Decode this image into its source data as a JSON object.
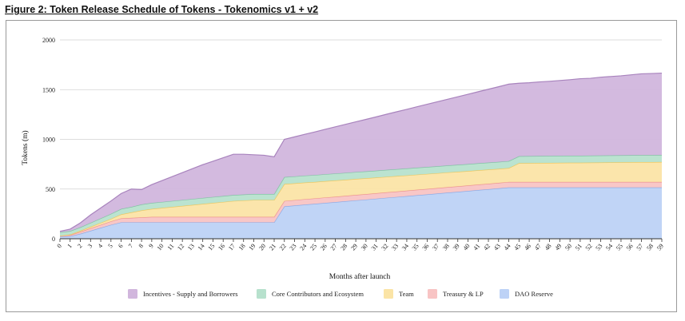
{
  "figure_title": "Figure 2: Token Release Schedule of Tokens - Tokenomics v1 + v2",
  "chart_data": {
    "type": "area",
    "stacked": true,
    "title": "",
    "xlabel": "Months after launch",
    "ylabel": "Tokens (m)",
    "xlim": [
      0,
      59
    ],
    "ylim": [
      0,
      2000
    ],
    "yticks": [
      "0",
      "500",
      "1000",
      "1500",
      "2000"
    ],
    "grid": true,
    "legend_position": "bottom",
    "x": [
      0,
      1,
      2,
      3,
      4,
      5,
      6,
      7,
      8,
      9,
      10,
      11,
      12,
      13,
      14,
      15,
      16,
      17,
      18,
      19,
      20,
      21,
      22,
      23,
      24,
      25,
      26,
      27,
      28,
      29,
      30,
      31,
      32,
      33,
      34,
      35,
      36,
      37,
      38,
      39,
      40,
      41,
      42,
      43,
      44,
      45,
      46,
      47,
      48,
      49,
      50,
      51,
      52,
      53,
      54,
      55,
      56,
      57,
      58,
      59
    ],
    "x_tick_labels": [
      "0",
      "1",
      "2",
      "3",
      "4",
      "5",
      "6",
      "7",
      "8",
      "9",
      "10",
      "11",
      "12",
      "13",
      "14",
      "15",
      "16",
      "17",
      "18",
      "19",
      "20",
      "21",
      "22",
      "23",
      "24",
      "25",
      "26",
      "27",
      "28",
      "29",
      "30",
      "31",
      "32",
      "33",
      "34",
      "35",
      "36",
      "37",
      "38",
      "39",
      "40",
      "41",
      "42",
      "43",
      "44",
      "45",
      "46",
      "47",
      "48",
      "49",
      "50",
      "51",
      "52",
      "53",
      "54",
      "55",
      "56",
      "57",
      "58",
      "59"
    ],
    "series": [
      {
        "name": "DAO Reserve",
        "color": "#bdd2f6",
        "values": [
          20,
          25,
          50,
          80,
          110,
          140,
          165,
          165,
          165,
          165,
          165,
          165,
          165,
          165,
          165,
          165,
          165,
          165,
          165,
          165,
          165,
          165,
          325,
          334,
          343,
          351,
          360,
          368,
          377,
          386,
          394,
          403,
          412,
          420,
          429,
          438,
          446,
          455,
          464,
          472,
          481,
          490,
          498,
          507,
          516,
          516,
          516,
          516,
          516,
          516,
          516,
          516,
          516,
          516,
          516,
          516,
          516,
          516,
          516,
          516
        ]
      },
      {
        "name": "Treasury & LP",
        "color": "#f8c4c4",
        "values": [
          10,
          12,
          20,
          25,
          30,
          35,
          40,
          45,
          50,
          55,
          55,
          55,
          55,
          55,
          55,
          55,
          55,
          55,
          55,
          55,
          55,
          55,
          55,
          55,
          55,
          55,
          55,
          55,
          55,
          55,
          55,
          55,
          55,
          55,
          55,
          55,
          55,
          55,
          55,
          55,
          55,
          55,
          55,
          55,
          55,
          55,
          55,
          55,
          55,
          55,
          55,
          55,
          55,
          55,
          55,
          55,
          55,
          55,
          55,
          55
        ]
      },
      {
        "name": "Team",
        "color": "#fbe4a6",
        "values": [
          0,
          5,
          10,
          15,
          20,
          25,
          40,
          55,
          70,
          80,
          90,
          100,
          110,
          120,
          130,
          140,
          150,
          160,
          165,
          170,
          170,
          170,
          170,
          168,
          167,
          165,
          164,
          163,
          161,
          160,
          159,
          157,
          156,
          155,
          153,
          152,
          151,
          149,
          148,
          147,
          145,
          144,
          143,
          141,
          140,
          189,
          190,
          191,
          192,
          193,
          194,
          194,
          195,
          196,
          197,
          198,
          199,
          200,
          200,
          201
        ]
      },
      {
        "name": "Core Contributors and Ecosystem",
        "color": "#b7e1cd",
        "values": [
          35,
          35,
          35,
          40,
          45,
          50,
          55,
          55,
          60,
          60,
          60,
          60,
          60,
          60,
          60,
          60,
          60,
          60,
          60,
          60,
          60,
          60,
          70,
          70,
          70,
          70,
          70,
          70,
          70,
          70,
          70,
          70,
          70,
          70,
          70,
          70,
          70,
          70,
          70,
          70,
          70,
          70,
          70,
          70,
          70,
          70,
          70,
          70,
          70,
          70,
          70,
          70,
          70,
          70,
          70,
          70,
          70,
          70,
          70,
          70
        ]
      },
      {
        "name": "Incentives - Supply and Borrowers",
        "color": "#d1b6dd",
        "values": [
          10,
          20,
          45,
          80,
          105,
          130,
          155,
          180,
          150,
          185,
          215,
          245,
          275,
          305,
          335,
          360,
          385,
          410,
          405,
          395,
          390,
          375,
          380,
          398,
          416,
          434,
          452,
          470,
          488,
          505,
          523,
          541,
          559,
          577,
          595,
          613,
          631,
          649,
          666,
          684,
          702,
          720,
          738,
          756,
          774,
          734,
          738,
          746,
          751,
          758,
          765,
          775,
          778,
          788,
          794,
          800,
          809,
          818,
          821,
          824
        ]
      }
    ],
    "legend_order": [
      "Incentives - Supply and Borrowers",
      "Core Contributors and Ecosystem",
      "Team",
      "Treasury & LP",
      "DAO Reserve"
    ]
  }
}
